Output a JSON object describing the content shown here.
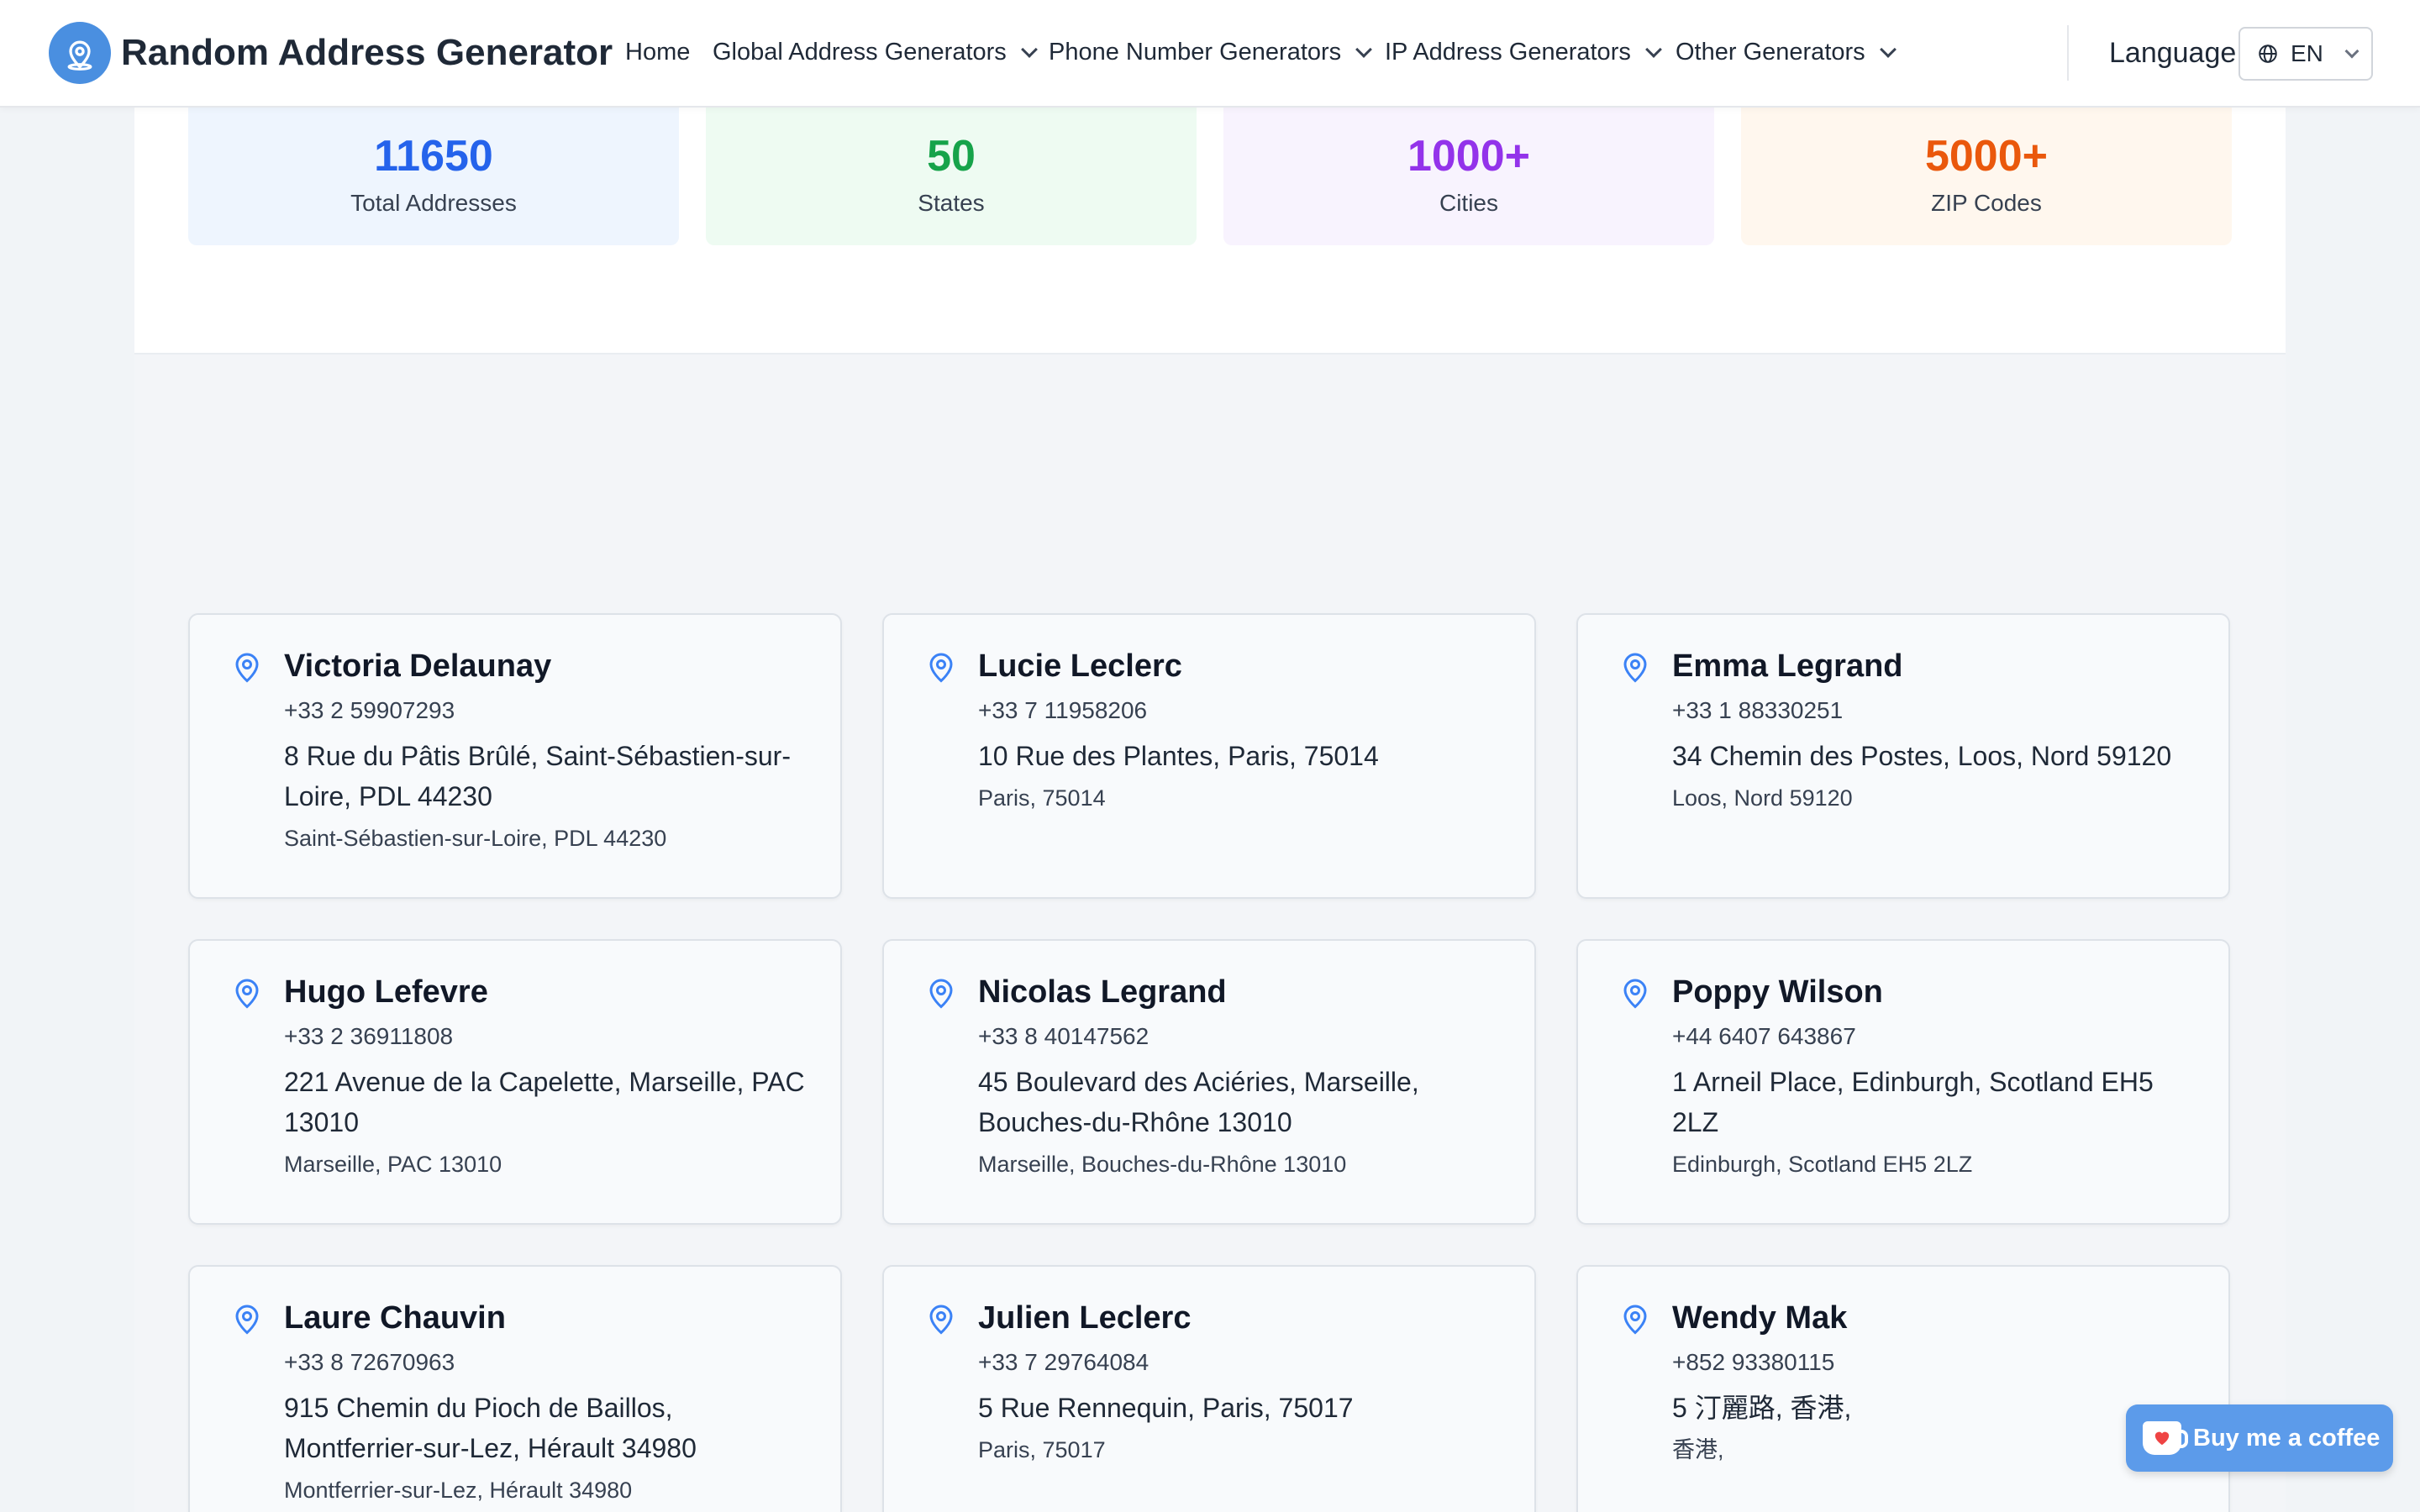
{
  "header": {
    "brand": "Random Address Generator",
    "nav": [
      {
        "label": "Home",
        "dropdown": false
      },
      {
        "label": "Global Address Generators",
        "dropdown": true
      },
      {
        "label": "Phone Number Generators",
        "dropdown": true
      },
      {
        "label": "IP Address Generators",
        "dropdown": true
      },
      {
        "label": "Other Generators",
        "dropdown": true
      }
    ],
    "language_label": "Language",
    "language_value": "EN"
  },
  "stats": [
    {
      "value": "11650",
      "label": "Total Addresses",
      "color": "#2563eb",
      "bg": "#eef5fe"
    },
    {
      "value": "50",
      "label": "States",
      "color": "#16a34a",
      "bg": "#eefbf2"
    },
    {
      "value": "1000+",
      "label": "Cities",
      "color": "#9333ea",
      "bg": "#f8f3fe"
    },
    {
      "value": "5000+",
      "label": "ZIP Codes",
      "color": "#ea580c",
      "bg": "#fff7ee"
    }
  ],
  "addresses": [
    {
      "name": "Victoria Delaunay",
      "phone": "+33 2 59907293",
      "address": "8 Rue du Pâtis Brûlé, Saint-Sébastien-sur-Loire, PDL 44230",
      "city": "Saint-Sébastien-sur-Loire, PDL 44230"
    },
    {
      "name": "Lucie Leclerc",
      "phone": "+33 7 11958206",
      "address": "10 Rue des Plantes, Paris, 75014",
      "city": "Paris, 75014"
    },
    {
      "name": "Emma Legrand",
      "phone": "+33 1 88330251",
      "address": "34 Chemin des Postes, Loos, Nord 59120",
      "city": "Loos, Nord 59120"
    },
    {
      "name": "Hugo Lefevre",
      "phone": "+33 2 36911808",
      "address": "221 Avenue de la Capelette, Marseille, PAC 13010",
      "city": "Marseille, PAC 13010"
    },
    {
      "name": "Nicolas Legrand",
      "phone": "+33 8 40147562",
      "address": "45 Boulevard des Aciéries, Marseille, Bouches-du-Rhône 13010",
      "city": "Marseille, Bouches-du-Rhône 13010"
    },
    {
      "name": "Poppy Wilson",
      "phone": "+44 6407 643867",
      "address": "1 Arneil Place, Edinburgh, Scotland EH5 2LZ",
      "city": "Edinburgh, Scotland EH5 2LZ"
    },
    {
      "name": "Laure Chauvin",
      "phone": "+33 8 72670963",
      "address": "915 Chemin du Pioch de Baillos, Montferrier-sur-Lez, Hérault 34980",
      "city": "Montferrier-sur-Lez, Hérault 34980"
    },
    {
      "name": "Julien Leclerc",
      "phone": "+33 7 29764084",
      "address": "5 Rue Rennequin, Paris, 75017",
      "city": "Paris, 75017"
    },
    {
      "name": "Wendy Mak",
      "phone": "+852 93380115",
      "address": "5 汀麗路, 香港,",
      "city": "香港,"
    }
  ],
  "coffee_button": {
    "label": "Buy me a coffee",
    "icon": "coffee-cup-icon"
  },
  "colors": {
    "accent": "#3b82f6",
    "pin": "#3b82f6"
  }
}
